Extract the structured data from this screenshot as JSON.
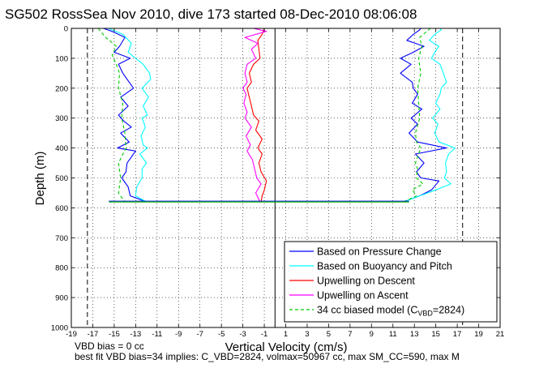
{
  "chart_data": {
    "type": "line",
    "title": "SG502 RossSea Nov 2010, dive 173 started 08-Dec-2010 08:06:08",
    "xlabel": "Vertical Velocity (cm/s)",
    "ylabel": "Depth (m)",
    "xlim": [
      -19,
      21
    ],
    "ylim": [
      0,
      1000
    ],
    "y_reversed": true,
    "grid": true,
    "x_ticks": [
      "-19",
      "-17",
      "-15",
      "-13",
      "-11",
      "-9",
      "-7",
      "-5",
      "-3",
      "-1",
      "1",
      "3",
      "5",
      "7",
      "9",
      "11",
      "13",
      "15",
      "17",
      "19",
      "21"
    ],
    "y_ticks": [
      "0",
      "100",
      "200",
      "300",
      "400",
      "500",
      "600",
      "700",
      "800",
      "900",
      "1000"
    ],
    "legend_position": "bottom-right",
    "reference_lines": {
      "dashed_x": [
        -17.5,
        17.5
      ],
      "solid_x": [
        0
      ]
    },
    "series": [
      {
        "name": "Based on Pressure Change",
        "color": "#0000ff",
        "style": "solid",
        "descent": {
          "depth": [
            0,
            10,
            30,
            60,
            80,
            100,
            120,
            150,
            180,
            200,
            230,
            260,
            290,
            310,
            330,
            350,
            380,
            400,
            410,
            430,
            450,
            480,
            500,
            530,
            560,
            580
          ],
          "w": [
            -16,
            -15.2,
            -14,
            -14.5,
            -15,
            -13.5,
            -14.6,
            -14.2,
            -13.6,
            -13.2,
            -14.4,
            -13.7,
            -14.6,
            -14.1,
            -13.4,
            -14.4,
            -13.6,
            -14.7,
            -13.0,
            -13.4,
            -13.8,
            -13.9,
            -14.3,
            -13.7,
            -13.5,
            -12.0
          ]
        },
        "ascent": {
          "depth": [
            580,
            560,
            540,
            510,
            500,
            480,
            450,
            420,
            400,
            380,
            350,
            320,
            300,
            270,
            250,
            220,
            200,
            180,
            150,
            120,
            100,
            80,
            60,
            40,
            20,
            5,
            0
          ],
          "w": [
            12.0,
            13.5,
            14.6,
            15.3,
            13.6,
            13.2,
            13.9,
            13.1,
            16.0,
            13.3,
            12.5,
            13.3,
            12.7,
            13.7,
            12.8,
            13.3,
            12.9,
            12.8,
            11.7,
            12.7,
            11.7,
            12.9,
            13.9,
            12.3,
            12.9,
            13.5,
            13.6
          ]
        }
      },
      {
        "name": "Based on Buoyancy and Pitch",
        "color": "#00ffff",
        "style": "solid",
        "descent": {
          "depth": [
            0,
            20,
            50,
            80,
            100,
            120,
            150,
            170,
            200,
            230,
            260,
            290,
            300,
            330,
            360,
            390,
            400,
            420,
            450,
            470,
            500,
            530,
            560,
            580
          ],
          "w": [
            -15.5,
            -14.2,
            -13.4,
            -13.7,
            -13.0,
            -12.3,
            -11.7,
            -11.6,
            -12.4,
            -11.8,
            -12.3,
            -11.9,
            -12.4,
            -12.1,
            -12.5,
            -12.3,
            -11.9,
            -12.6,
            -12.0,
            -12.4,
            -12.4,
            -12.9,
            -13.0,
            -12.0
          ]
        },
        "ascent": {
          "depth": [
            580,
            560,
            540,
            520,
            500,
            480,
            450,
            420,
            400,
            380,
            350,
            320,
            300,
            270,
            250,
            220,
            200,
            180,
            150,
            120,
            100,
            80,
            60,
            40,
            20,
            5,
            0
          ],
          "w": [
            12.0,
            13.5,
            15.0,
            16.4,
            15.8,
            16.0,
            15.9,
            16.2,
            16.8,
            15.3,
            14.9,
            15.2,
            14.7,
            15.4,
            15.0,
            15.4,
            15.5,
            16.0,
            15.7,
            15.4,
            14.6,
            14.9,
            15.3,
            14.4,
            14.9,
            15.5,
            15.4
          ]
        }
      },
      {
        "name": "Upwelling on Descent",
        "color": "#ff0000",
        "style": "solid",
        "depth": [
          0,
          20,
          40,
          70,
          100,
          120,
          150,
          180,
          200,
          230,
          260,
          290,
          310,
          340,
          370,
          400,
          420,
          450,
          480,
          510,
          540,
          560,
          580
        ],
        "w": [
          -1.0,
          -1.2,
          -1.6,
          -1.5,
          -1.4,
          -2.0,
          -2.4,
          -2.2,
          -2.6,
          -2.4,
          -2.2,
          -2.0,
          -1.5,
          -1.8,
          -1.2,
          -1.6,
          -1.2,
          -1.5,
          -1.3,
          -0.8,
          -1.0,
          -1.2,
          -1.3
        ]
      },
      {
        "name": "Upwelling on Ascent",
        "color": "#ff00ff",
        "style": "solid",
        "depth": [
          0,
          10,
          30,
          50,
          70,
          100,
          120,
          150,
          180,
          200,
          220,
          250,
          280,
          300,
          330,
          360,
          390,
          410,
          440,
          470,
          500,
          520,
          550,
          580
        ],
        "w": [
          -2.0,
          -0.8,
          -2.8,
          -1.6,
          -2.2,
          -1.8,
          -2.6,
          -2.8,
          -2.6,
          -3.0,
          -2.7,
          -2.9,
          -2.6,
          -2.8,
          -2.2,
          -2.7,
          -2.3,
          -2.6,
          -2.1,
          -1.9,
          -1.7,
          -1.3,
          -1.8,
          -1.4
        ]
      },
      {
        "name": "34 cc biased model (C_VBD=2824)",
        "color": "#00cc00",
        "style": "dashed",
        "descent": {
          "depth": [
            0,
            30,
            60,
            90,
            120,
            150,
            200,
            250,
            300,
            350,
            400,
            450,
            500,
            550,
            580
          ],
          "w": [
            -16.5,
            -15.8,
            -14.8,
            -15.2,
            -14.8,
            -14.5,
            -14.6,
            -14.2,
            -14.3,
            -14.0,
            -13.9,
            -14.6,
            -14.4,
            -14.6,
            -14.0
          ]
        },
        "ascent": {
          "depth": [
            580,
            560,
            540,
            520,
            500,
            470,
            450,
            420,
            400,
            380,
            350,
            300,
            250,
            200,
            150,
            100,
            60,
            30,
            0
          ],
          "w": [
            12.0,
            13.2,
            12.8,
            13.8,
            13.2,
            13.3,
            13.1,
            13.4,
            13.6,
            13.2,
            13.1,
            13.5,
            13.4,
            13.3,
            13.6,
            13.4,
            13.7,
            13.5,
            14.5
          ]
        }
      }
    ],
    "transition_line": {
      "depth": 580,
      "w_from": -15.5,
      "w_to": 12.5
    },
    "annotations": [
      "VBD bias = 0 cc",
      "best fit VBD bias=34 implies: C_VBD=2824, volmax=50967 cc, max SM_CC=590, max M"
    ],
    "legend": {
      "items": [
        {
          "label": "Based on Pressure Change",
          "color": "#0000ff",
          "dash": false
        },
        {
          "label": "Based on Buoyancy and Pitch",
          "color": "#00ffff",
          "dash": false
        },
        {
          "label": "Upwelling on Descent",
          "color": "#ff0000",
          "dash": false
        },
        {
          "label": "Upwelling on Ascent",
          "color": "#ff00ff",
          "dash": false
        },
        {
          "label": "34 cc biased model (C",
          "sub": "VBD",
          "suffix": "=2824)",
          "color": "#00cc00",
          "dash": true
        }
      ]
    }
  }
}
